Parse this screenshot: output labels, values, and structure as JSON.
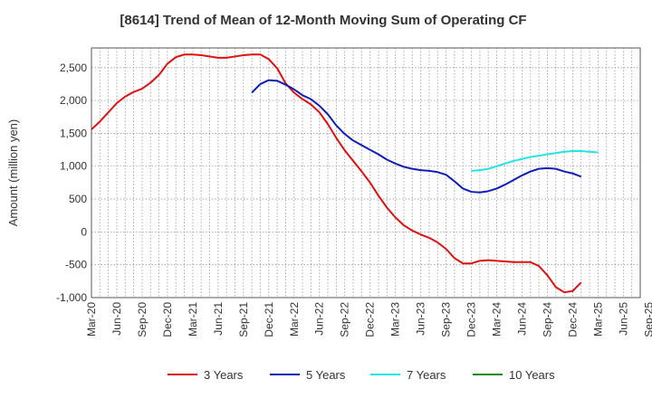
{
  "chart_data": {
    "type": "line",
    "title": "[8614]  Trend of Mean of 12-Month Moving Sum of Operating CF",
    "xlabel": "",
    "ylabel": "Amount (million yen)",
    "ylim": [
      -1000,
      2800
    ],
    "y_ticks": [
      -1000,
      -500,
      0,
      500,
      1000,
      1500,
      2000,
      2500
    ],
    "y_tick_labels": [
      "-1,000",
      "-500",
      "0",
      "500",
      "1,000",
      "1,500",
      "2,000",
      "2,500"
    ],
    "x_count": 65,
    "x_ticks": [
      {
        "index": 0,
        "label": "Mar-20"
      },
      {
        "index": 3,
        "label": "Jun-20"
      },
      {
        "index": 6,
        "label": "Sep-20"
      },
      {
        "index": 9,
        "label": "Dec-20"
      },
      {
        "index": 12,
        "label": "Mar-21"
      },
      {
        "index": 15,
        "label": "Jun-21"
      },
      {
        "index": 18,
        "label": "Sep-21"
      },
      {
        "index": 21,
        "label": "Dec-21"
      },
      {
        "index": 24,
        "label": "Mar-22"
      },
      {
        "index": 27,
        "label": "Jun-22"
      },
      {
        "index": 30,
        "label": "Sep-22"
      },
      {
        "index": 33,
        "label": "Dec-22"
      },
      {
        "index": 36,
        "label": "Mar-23"
      },
      {
        "index": 39,
        "label": "Jun-23"
      },
      {
        "index": 42,
        "label": "Sep-23"
      },
      {
        "index": 45,
        "label": "Dec-23"
      },
      {
        "index": 48,
        "label": "Mar-24"
      },
      {
        "index": 51,
        "label": "Jun-24"
      },
      {
        "index": 54,
        "label": "Sep-24"
      },
      {
        "index": 57,
        "label": "Dec-24"
      },
      {
        "index": 60,
        "label": "Mar-25"
      },
      {
        "index": 63,
        "label": "Jun-25"
      },
      {
        "index": 66,
        "label": "Sep-25"
      }
    ],
    "grid": true,
    "legend_position": "bottom",
    "series": [
      {
        "name": "3 Years",
        "color": "#dd1111",
        "start_index": 0,
        "values": [
          1560,
          1680,
          1820,
          1960,
          2060,
          2130,
          2180,
          2270,
          2390,
          2560,
          2660,
          2700,
          2700,
          2690,
          2670,
          2650,
          2650,
          2670,
          2690,
          2700,
          2700,
          2630,
          2490,
          2260,
          2120,
          2020,
          1940,
          1820,
          1640,
          1430,
          1240,
          1080,
          920,
          750,
          550,
          370,
          220,
          100,
          20,
          -40,
          -90,
          -160,
          -260,
          -400,
          -480,
          -480,
          -440,
          -430,
          -440,
          -450,
          -460,
          -460,
          -460,
          -520,
          -660,
          -840,
          -920,
          -900,
          -770
        ]
      },
      {
        "name": "5 Years",
        "color": "#0d1fb8",
        "start_index": 19,
        "values": [
          2120,
          2250,
          2310,
          2300,
          2240,
          2170,
          2080,
          2020,
          1920,
          1790,
          1620,
          1490,
          1390,
          1320,
          1250,
          1180,
          1100,
          1040,
          990,
          960,
          940,
          930,
          910,
          870,
          770,
          660,
          610,
          600,
          620,
          660,
          720,
          790,
          860,
          920,
          960,
          970,
          960,
          920,
          890,
          840
        ]
      },
      {
        "name": "7 Years",
        "color": "#22e5e5",
        "start_index": 45,
        "values": [
          930,
          940,
          960,
          1000,
          1040,
          1080,
          1110,
          1140,
          1160,
          1180,
          1200,
          1220,
          1230,
          1230,
          1220,
          1210
        ]
      },
      {
        "name": "10 Years",
        "color": "#1a8a1a",
        "start_index": 0,
        "values": []
      }
    ]
  }
}
